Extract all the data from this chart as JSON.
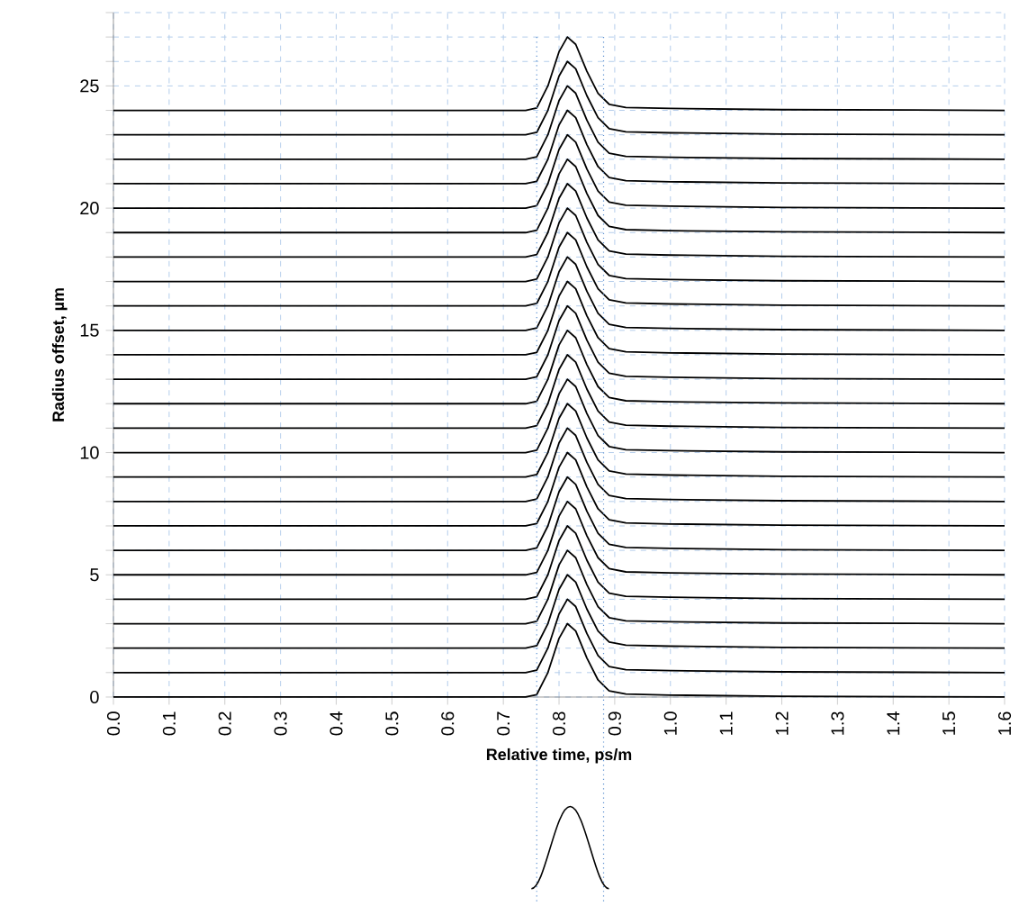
{
  "chart_data": {
    "type": "line",
    "xlabel": "Relative time, ps/m",
    "ylabel": "Radius offset,  µm",
    "x": [
      0,
      0.74,
      0.76,
      0.78,
      0.8,
      0.815,
      0.83,
      0.85,
      0.87,
      0.89,
      0.92,
      1.0,
      1.2,
      1.6
    ],
    "xlim": [
      0,
      1.6
    ],
    "ylim": [
      0,
      28
    ],
    "xticks": [
      {
        "value": 0,
        "label": "0.0"
      },
      0.1,
      0.2,
      0.3,
      0.4,
      0.5,
      0.6,
      0.7,
      0.8,
      0.9,
      {
        "value": 1,
        "label": "1.0"
      },
      1.1,
      1.2,
      1.3,
      1.4,
      1.5,
      1.6
    ],
    "yticks": [
      0,
      {
        "value": 1,
        "label": null
      },
      {
        "value": 2,
        "label": null
      },
      {
        "value": 3,
        "label": null
      },
      {
        "value": 4,
        "label": null
      },
      5,
      {
        "value": 6,
        "label": null
      },
      {
        "value": 7,
        "label": null
      },
      {
        "value": 8,
        "label": null
      },
      {
        "value": 9,
        "label": null
      },
      10,
      {
        "value": 11,
        "label": null
      },
      {
        "value": 12,
        "label": null
      },
      {
        "value": 13,
        "label": null
      },
      {
        "value": 14,
        "label": null
      },
      15,
      {
        "value": 16,
        "label": null
      },
      {
        "value": 17,
        "label": null
      },
      {
        "value": 18,
        "label": null
      },
      {
        "value": 19,
        "label": null
      },
      20,
      {
        "value": 21,
        "label": null
      },
      {
        "value": 22,
        "label": null
      },
      {
        "value": 23,
        "label": null
      },
      {
        "value": 24,
        "label": null
      },
      25,
      {
        "value": 26,
        "label": null
      },
      {
        "value": 27,
        "label": null
      },
      {
        "value": 28,
        "label": null
      }
    ],
    "grid": true,
    "marker": "none",
    "line_style": "solid",
    "ref_lines": [
      {
        "axis": "x",
        "value": 0.76,
        "color": "#5b8fd0",
        "line_style": "dotted"
      },
      {
        "axis": "x",
        "value": 0.88,
        "color": "#5b8fd0",
        "line_style": "dotted"
      }
    ],
    "series": [
      {
        "color": "#000000",
        "values": [
          0,
          0,
          0.1,
          1,
          2.4,
          3,
          2.7,
          1.6,
          0.7,
          0.25,
          0.12,
          0.08,
          0.03,
          0
        ]
      },
      {
        "color": "#000000",
        "values": [
          1,
          1,
          1.1,
          2,
          3.4,
          4,
          3.7,
          2.6,
          1.7,
          1.25,
          1.12,
          1.08,
          1.03,
          1
        ]
      },
      {
        "color": "#000000",
        "values": [
          2,
          2,
          2.1,
          3,
          4.4,
          5,
          4.7,
          3.6,
          2.7,
          2.25,
          2.12,
          2.08,
          2.03,
          2
        ]
      },
      {
        "color": "#000000",
        "values": [
          3,
          3,
          3.1,
          4,
          5.4,
          6,
          5.7,
          4.6,
          3.7,
          3.25,
          3.12,
          3.08,
          3.03,
          3
        ]
      },
      {
        "color": "#000000",
        "values": [
          4,
          4,
          4.1,
          5,
          6.4,
          7,
          6.7,
          5.6,
          4.7,
          4.25,
          4.12,
          4.08,
          4.03,
          4
        ]
      },
      {
        "color": "#000000",
        "values": [
          5,
          5,
          5.1,
          6,
          7.4,
          8,
          7.7,
          6.6,
          5.7,
          5.25,
          5.12,
          5.08,
          5.03,
          5
        ]
      },
      {
        "color": "#000000",
        "values": [
          6,
          6,
          6.1,
          7,
          8.4,
          9,
          8.7,
          7.6,
          6.7,
          6.25,
          6.12,
          6.08,
          6.03,
          6
        ]
      },
      {
        "color": "#000000",
        "values": [
          7,
          7,
          7.1,
          8,
          9.4,
          10,
          9.7,
          8.6,
          7.7,
          7.25,
          7.12,
          7.08,
          7.03,
          7
        ]
      },
      {
        "color": "#000000",
        "values": [
          8,
          8,
          8.1,
          9,
          10.4,
          11,
          10.7,
          9.6,
          8.7,
          8.25,
          8.12,
          8.08,
          8.03,
          8
        ]
      },
      {
        "color": "#000000",
        "values": [
          9,
          9,
          9.1,
          10,
          11.4,
          12,
          11.7,
          10.6,
          9.7,
          9.25,
          9.12,
          9.08,
          9.03,
          9
        ]
      },
      {
        "color": "#000000",
        "values": [
          10,
          10,
          10.1,
          11,
          12.4,
          13,
          12.7,
          11.6,
          10.7,
          10.25,
          10.12,
          10.08,
          10.03,
          10
        ]
      },
      {
        "color": "#000000",
        "values": [
          11,
          11,
          11.1,
          12,
          13.4,
          14,
          13.7,
          12.6,
          11.7,
          11.25,
          11.12,
          11.08,
          11.03,
          11
        ]
      },
      {
        "color": "#000000",
        "values": [
          12,
          12,
          12.1,
          13,
          14.4,
          15,
          14.7,
          13.6,
          12.7,
          12.25,
          12.12,
          12.08,
          12.03,
          12
        ]
      },
      {
        "color": "#000000",
        "values": [
          13,
          13,
          13.1,
          14,
          15.4,
          16,
          15.7,
          14.6,
          13.7,
          13.25,
          13.12,
          13.08,
          13.03,
          13
        ]
      },
      {
        "color": "#000000",
        "values": [
          14,
          14,
          14.1,
          15,
          16.4,
          17,
          16.7,
          15.6,
          14.7,
          14.25,
          14.12,
          14.08,
          14.03,
          14
        ]
      },
      {
        "color": "#000000",
        "values": [
          15,
          15,
          15.1,
          16,
          17.4,
          18,
          17.7,
          16.6,
          15.7,
          15.25,
          15.12,
          15.08,
          15.03,
          15
        ]
      },
      {
        "color": "#000000",
        "values": [
          16,
          16,
          16.1,
          17,
          18.4,
          19,
          18.7,
          17.6,
          16.7,
          16.25,
          16.12,
          16.08,
          16.03,
          16
        ]
      },
      {
        "color": "#000000",
        "values": [
          17,
          17,
          17.1,
          18,
          19.4,
          20,
          19.7,
          18.6,
          17.7,
          17.25,
          17.12,
          17.08,
          17.03,
          17
        ]
      },
      {
        "color": "#000000",
        "values": [
          18,
          18,
          18.1,
          19,
          20.4,
          21,
          20.7,
          19.6,
          18.7,
          18.25,
          18.12,
          18.08,
          18.03,
          18
        ]
      },
      {
        "color": "#000000",
        "values": [
          19,
          19,
          19.1,
          20,
          21.4,
          22,
          21.7,
          20.6,
          19.7,
          19.25,
          19.12,
          19.08,
          19.03,
          19
        ]
      },
      {
        "color": "#000000",
        "values": [
          20,
          20,
          20.1,
          21,
          22.4,
          23,
          22.7,
          21.6,
          20.7,
          20.25,
          20.12,
          20.08,
          20.03,
          20
        ]
      },
      {
        "color": "#000000",
        "values": [
          21,
          21,
          21.1,
          22,
          23.4,
          24,
          23.7,
          22.6,
          21.7,
          21.25,
          21.12,
          21.08,
          21.03,
          21
        ]
      },
      {
        "color": "#000000",
        "values": [
          22,
          22,
          22.1,
          23,
          24.4,
          25,
          24.7,
          23.6,
          22.7,
          22.25,
          22.12,
          22.08,
          22.03,
          22
        ]
      },
      {
        "color": "#000000",
        "values": [
          23,
          23,
          23.1,
          24,
          25.4,
          26,
          25.7,
          24.6,
          23.7,
          23.25,
          23.12,
          23.08,
          23.03,
          23
        ]
      },
      {
        "color": "#000000",
        "values": [
          24,
          24,
          24.1,
          25,
          26.4,
          27,
          26.7,
          25.6,
          24.7,
          24.25,
          24.12,
          24.08,
          24.03,
          24
        ]
      }
    ]
  }
}
